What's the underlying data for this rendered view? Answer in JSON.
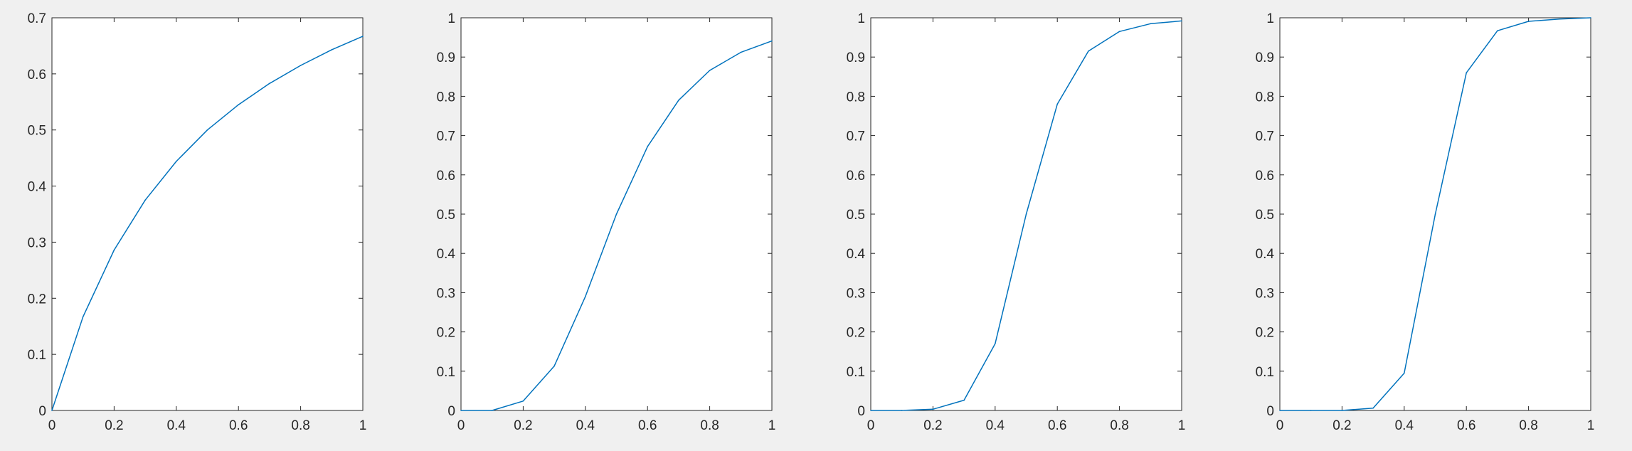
{
  "figure": {
    "background": "#f0f0f0"
  },
  "chart_data": [
    {
      "type": "line",
      "title": "",
      "xlabel": "",
      "ylabel": "",
      "xlim": [
        0,
        1
      ],
      "ylim": [
        0,
        0.7
      ],
      "xticks": [
        "0",
        "0.2",
        "0.4",
        "0.6",
        "0.8",
        "1"
      ],
      "yticks": [
        "0",
        "0.1",
        "0.2",
        "0.3",
        "0.4",
        "0.5",
        "0.6",
        "0.7"
      ],
      "grid": false,
      "series": [
        {
          "color": "#0072bd",
          "x": [
            0,
            0.1,
            0.2,
            0.3,
            0.4,
            0.5,
            0.6,
            0.7,
            0.8,
            0.9,
            1.0
          ],
          "y": [
            0,
            0.167,
            0.286,
            0.375,
            0.444,
            0.5,
            0.545,
            0.583,
            0.615,
            0.643,
            0.667
          ]
        }
      ]
    },
    {
      "type": "line",
      "title": "",
      "xlabel": "",
      "ylabel": "",
      "xlim": [
        0,
        1
      ],
      "ylim": [
        0,
        1
      ],
      "xticks": [
        "0",
        "0.2",
        "0.4",
        "0.6",
        "0.8",
        "1"
      ],
      "yticks": [
        "0",
        "0.1",
        "0.2",
        "0.3",
        "0.4",
        "0.5",
        "0.6",
        "0.7",
        "0.8",
        "0.9",
        "1"
      ],
      "grid": false,
      "series": [
        {
          "color": "#0072bd",
          "x": [
            0,
            0.1,
            0.2,
            0.3,
            0.4,
            0.5,
            0.6,
            0.7,
            0.8,
            0.9,
            1.0
          ],
          "y": [
            0,
            0.0,
            0.024,
            0.113,
            0.29,
            0.5,
            0.672,
            0.79,
            0.866,
            0.912,
            0.941
          ]
        }
      ]
    },
    {
      "type": "line",
      "title": "",
      "xlabel": "",
      "ylabel": "",
      "xlim": [
        0,
        1
      ],
      "ylim": [
        0,
        1
      ],
      "xticks": [
        "0",
        "0.2",
        "0.4",
        "0.6",
        "0.8",
        "1"
      ],
      "yticks": [
        "0",
        "0.1",
        "0.2",
        "0.3",
        "0.4",
        "0.5",
        "0.6",
        "0.7",
        "0.8",
        "0.9",
        "1"
      ],
      "grid": false,
      "series": [
        {
          "color": "#0072bd",
          "x": [
            0,
            0.1,
            0.2,
            0.3,
            0.4,
            0.5,
            0.6,
            0.7,
            0.8,
            0.9,
            1.0
          ],
          "y": [
            0,
            0.0,
            0.003,
            0.026,
            0.17,
            0.5,
            0.78,
            0.915,
            0.965,
            0.985,
            0.992
          ]
        }
      ]
    },
    {
      "type": "line",
      "title": "",
      "xlabel": "",
      "ylabel": "",
      "xlim": [
        0,
        1
      ],
      "ylim": [
        0,
        1
      ],
      "xticks": [
        "0",
        "0.2",
        "0.4",
        "0.6",
        "0.8",
        "1"
      ],
      "yticks": [
        "0",
        "0.1",
        "0.2",
        "0.3",
        "0.4",
        "0.5",
        "0.6",
        "0.7",
        "0.8",
        "0.9",
        "1"
      ],
      "grid": false,
      "series": [
        {
          "color": "#0072bd",
          "x": [
            0,
            0.1,
            0.2,
            0.3,
            0.4,
            0.5,
            0.6,
            0.7,
            0.8,
            0.9,
            1.0
          ],
          "y": [
            0,
            0.0,
            0.0,
            0.006,
            0.095,
            0.5,
            0.86,
            0.967,
            0.991,
            0.997,
            1.0
          ]
        }
      ]
    }
  ]
}
